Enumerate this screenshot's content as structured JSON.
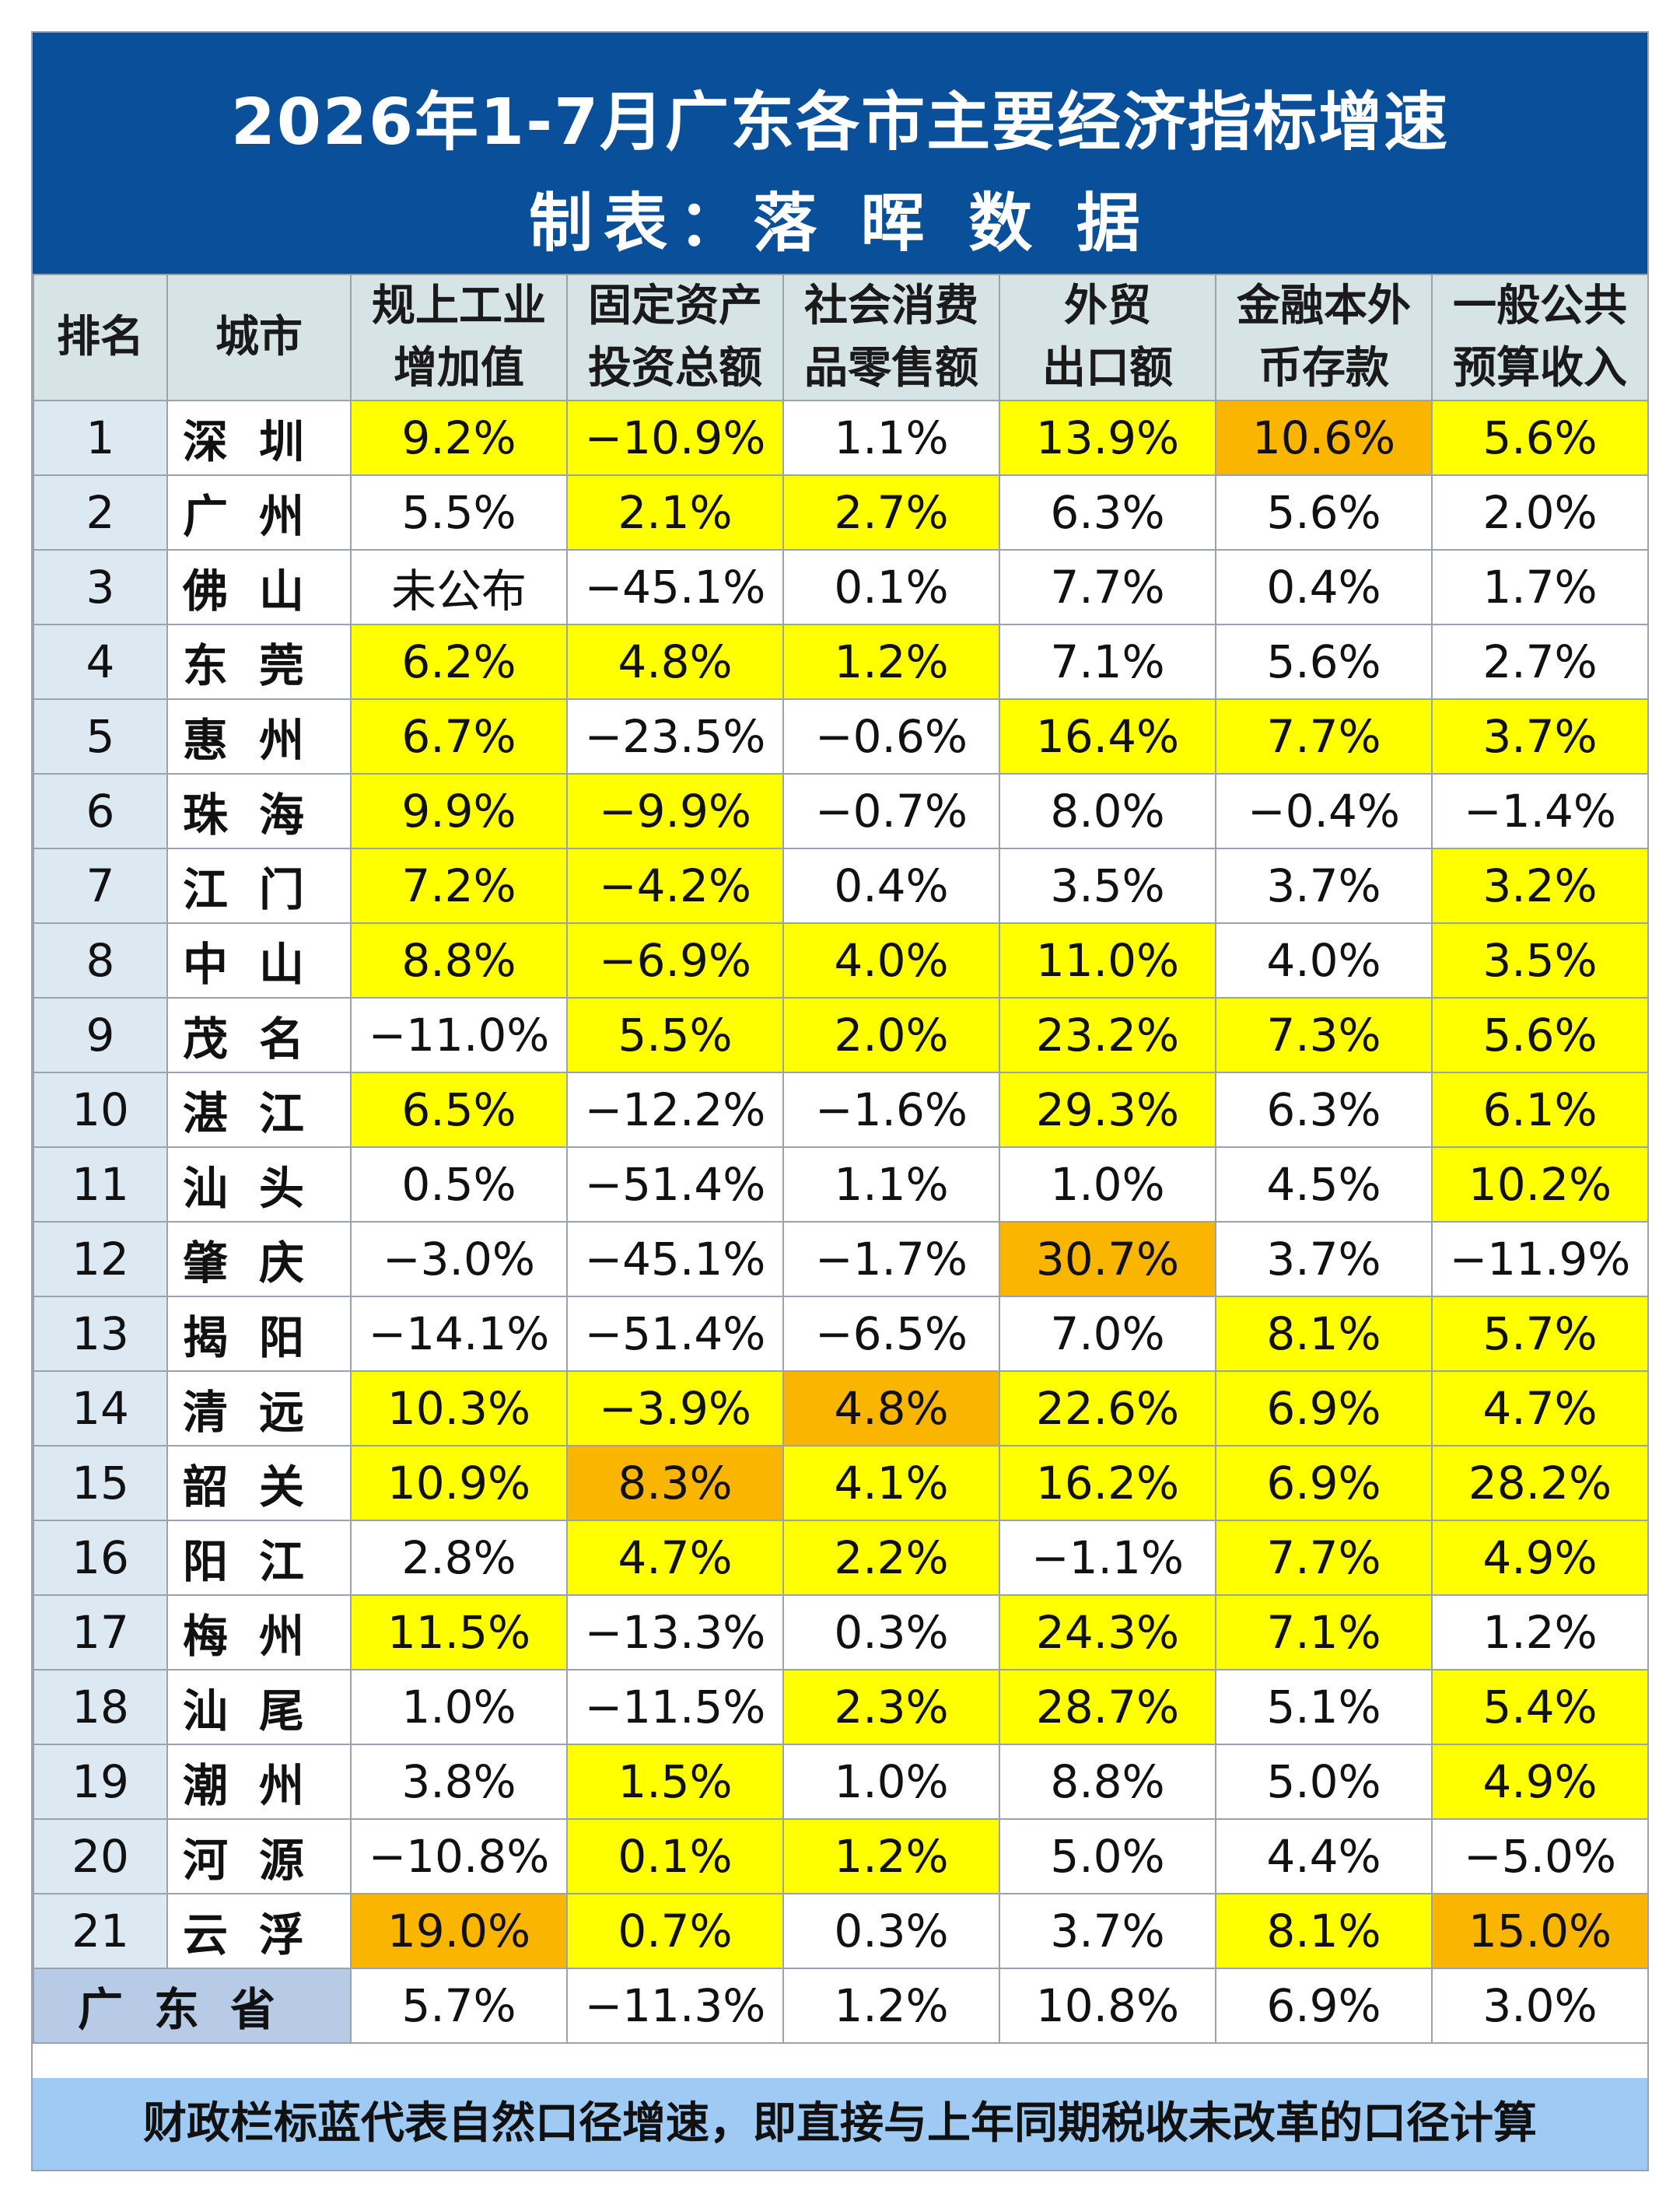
{
  "title": {
    "line1": "2026年1-7月广东各市主要经济指标增速",
    "line2": "制表：落 晖 数 据"
  },
  "table": {
    "headers": [
      [
        "排名"
      ],
      [
        "城市"
      ],
      [
        "规上工业",
        "增加值"
      ],
      [
        "固定资产",
        "投资总额"
      ],
      [
        "社会消费",
        "品零售额"
      ],
      [
        "外贸",
        "出口额"
      ],
      [
        "金融本外",
        "币存款"
      ],
      [
        "一般公共",
        "预算收入"
      ]
    ],
    "rows": [
      {
        "rank": "1",
        "city": "深圳",
        "cells": [
          {
            "v": "9.2%",
            "bg": "y"
          },
          {
            "v": "−10.9%",
            "bg": "y",
            "c": "neg"
          },
          {
            "v": "1.1%",
            "bg": "w"
          },
          {
            "v": "13.9%",
            "bg": "y"
          },
          {
            "v": "10.6%",
            "bg": "o"
          },
          {
            "v": "5.6%",
            "bg": "y"
          }
        ]
      },
      {
        "rank": "2",
        "city": "广州",
        "cells": [
          {
            "v": "5.5%",
            "bg": "w"
          },
          {
            "v": "2.1%",
            "bg": "y"
          },
          {
            "v": "2.7%",
            "bg": "y"
          },
          {
            "v": "6.3%",
            "bg": "w"
          },
          {
            "v": "5.6%",
            "bg": "w"
          },
          {
            "v": "2.0%",
            "bg": "w"
          }
        ]
      },
      {
        "rank": "3",
        "city": "佛山",
        "cells": [
          {
            "v": "未公布",
            "bg": "w",
            "c": "redsmall"
          },
          {
            "v": "−45.1%",
            "bg": "w",
            "c": "neg"
          },
          {
            "v": "0.1%",
            "bg": "w"
          },
          {
            "v": "7.7%",
            "bg": "w"
          },
          {
            "v": "0.4%",
            "bg": "w"
          },
          {
            "v": "1.7%",
            "bg": "w"
          }
        ]
      },
      {
        "rank": "4",
        "city": "东莞",
        "cells": [
          {
            "v": "6.2%",
            "bg": "y"
          },
          {
            "v": "4.8%",
            "bg": "y"
          },
          {
            "v": "1.2%",
            "bg": "y"
          },
          {
            "v": "7.1%",
            "bg": "w"
          },
          {
            "v": "5.6%",
            "bg": "w"
          },
          {
            "v": "2.7%",
            "bg": "w"
          }
        ]
      },
      {
        "rank": "5",
        "city": "惠州",
        "cells": [
          {
            "v": "6.7%",
            "bg": "y"
          },
          {
            "v": "−23.5%",
            "bg": "w",
            "c": "neg"
          },
          {
            "v": "−0.6%",
            "bg": "w",
            "c": "neg"
          },
          {
            "v": "16.4%",
            "bg": "y"
          },
          {
            "v": "7.7%",
            "bg": "y"
          },
          {
            "v": "3.7%",
            "bg": "y"
          }
        ]
      },
      {
        "rank": "6",
        "city": "珠海",
        "cells": [
          {
            "v": "9.9%",
            "bg": "y"
          },
          {
            "v": "−9.9%",
            "bg": "y",
            "c": "neg"
          },
          {
            "v": "−0.7%",
            "bg": "w",
            "c": "neg"
          },
          {
            "v": "8.0%",
            "bg": "w"
          },
          {
            "v": "−0.4%",
            "bg": "w",
            "c": "neg"
          },
          {
            "v": "−1.4%",
            "bg": "w",
            "c": "neg"
          }
        ]
      },
      {
        "rank": "7",
        "city": "江门",
        "cells": [
          {
            "v": "7.2%",
            "bg": "y"
          },
          {
            "v": "−4.2%",
            "bg": "y",
            "c": "neg"
          },
          {
            "v": "0.4%",
            "bg": "w"
          },
          {
            "v": "3.5%",
            "bg": "w"
          },
          {
            "v": "3.7%",
            "bg": "w"
          },
          {
            "v": "3.2%",
            "bg": "y"
          }
        ]
      },
      {
        "rank": "8",
        "city": "中山",
        "cells": [
          {
            "v": "8.8%",
            "bg": "y"
          },
          {
            "v": "−6.9%",
            "bg": "y",
            "c": "neg"
          },
          {
            "v": "4.0%",
            "bg": "y"
          },
          {
            "v": "11.0%",
            "bg": "y"
          },
          {
            "v": "4.0%",
            "bg": "w"
          },
          {
            "v": "3.5%",
            "bg": "y"
          }
        ]
      },
      {
        "rank": "9",
        "city": "茂名",
        "cells": [
          {
            "v": "−11.0%",
            "bg": "w",
            "c": "neg"
          },
          {
            "v": "5.5%",
            "bg": "y"
          },
          {
            "v": "2.0%",
            "bg": "y"
          },
          {
            "v": "23.2%",
            "bg": "y"
          },
          {
            "v": "7.3%",
            "bg": "y"
          },
          {
            "v": "5.6%",
            "bg": "y"
          }
        ]
      },
      {
        "rank": "10",
        "city": "湛江",
        "cells": [
          {
            "v": "6.5%",
            "bg": "y"
          },
          {
            "v": "−12.2%",
            "bg": "w",
            "c": "neg"
          },
          {
            "v": "−1.6%",
            "bg": "w",
            "c": "neg"
          },
          {
            "v": "29.3%",
            "bg": "y"
          },
          {
            "v": "6.3%",
            "bg": "w"
          },
          {
            "v": "6.1%",
            "bg": "y"
          }
        ]
      },
      {
        "rank": "11",
        "city": "汕头",
        "cells": [
          {
            "v": "0.5%",
            "bg": "w"
          },
          {
            "v": "−51.4%",
            "bg": "w",
            "c": "neg"
          },
          {
            "v": "1.1%",
            "bg": "w"
          },
          {
            "v": "1.0%",
            "bg": "w"
          },
          {
            "v": "4.5%",
            "bg": "w"
          },
          {
            "v": "10.2%",
            "bg": "y"
          }
        ]
      },
      {
        "rank": "12",
        "city": "肇庆",
        "cells": [
          {
            "v": "−3.0%",
            "bg": "w",
            "c": "neg"
          },
          {
            "v": "−45.1%",
            "bg": "w",
            "c": "neg"
          },
          {
            "v": "−1.7%",
            "bg": "w",
            "c": "neg"
          },
          {
            "v": "30.7%",
            "bg": "o"
          },
          {
            "v": "3.7%",
            "bg": "w"
          },
          {
            "v": "−11.9%",
            "bg": "w",
            "c": "neg"
          }
        ]
      },
      {
        "rank": "13",
        "city": "揭阳",
        "cells": [
          {
            "v": "−14.1%",
            "bg": "w",
            "c": "neg"
          },
          {
            "v": "−51.4%",
            "bg": "w",
            "c": "neg"
          },
          {
            "v": "−6.5%",
            "bg": "w",
            "c": "neg"
          },
          {
            "v": "7.0%",
            "bg": "w"
          },
          {
            "v": "8.1%",
            "bg": "y"
          },
          {
            "v": "5.7%",
            "bg": "y"
          }
        ]
      },
      {
        "rank": "14",
        "city": "清远",
        "cells": [
          {
            "v": "10.3%",
            "bg": "y"
          },
          {
            "v": "−3.9%",
            "bg": "y",
            "c": "neg"
          },
          {
            "v": "4.8%",
            "bg": "o"
          },
          {
            "v": "22.6%",
            "bg": "y"
          },
          {
            "v": "6.9%",
            "bg": "y"
          },
          {
            "v": "4.7%",
            "bg": "y"
          }
        ]
      },
      {
        "rank": "15",
        "city": "韶关",
        "cells": [
          {
            "v": "10.9%",
            "bg": "y"
          },
          {
            "v": "8.3%",
            "bg": "o"
          },
          {
            "v": "4.1%",
            "bg": "y"
          },
          {
            "v": "16.2%",
            "bg": "y"
          },
          {
            "v": "6.9%",
            "bg": "y"
          },
          {
            "v": "28.2%",
            "bg": "y",
            "c": "cyan"
          }
        ]
      },
      {
        "rank": "16",
        "city": "阳江",
        "cells": [
          {
            "v": "2.8%",
            "bg": "w"
          },
          {
            "v": "4.7%",
            "bg": "y"
          },
          {
            "v": "2.2%",
            "bg": "y"
          },
          {
            "v": "−1.1%",
            "bg": "w",
            "c": "neg"
          },
          {
            "v": "7.7%",
            "bg": "y"
          },
          {
            "v": "4.9%",
            "bg": "y"
          }
        ]
      },
      {
        "rank": "17",
        "city": "梅州",
        "cells": [
          {
            "v": "11.5%",
            "bg": "y"
          },
          {
            "v": "−13.3%",
            "bg": "w",
            "c": "neg"
          },
          {
            "v": "0.3%",
            "bg": "w"
          },
          {
            "v": "24.3%",
            "bg": "y"
          },
          {
            "v": "7.1%",
            "bg": "y"
          },
          {
            "v": "1.2%",
            "bg": "w"
          }
        ]
      },
      {
        "rank": "18",
        "city": "汕尾",
        "cells": [
          {
            "v": "1.0%",
            "bg": "w"
          },
          {
            "v": "−11.5%",
            "bg": "w",
            "c": "neg"
          },
          {
            "v": "2.3%",
            "bg": "y"
          },
          {
            "v": "28.7%",
            "bg": "y"
          },
          {
            "v": "5.1%",
            "bg": "w"
          },
          {
            "v": "5.4%",
            "bg": "y"
          }
        ]
      },
      {
        "rank": "19",
        "city": "潮州",
        "cells": [
          {
            "v": "3.8%",
            "bg": "w"
          },
          {
            "v": "1.5%",
            "bg": "y"
          },
          {
            "v": "1.0%",
            "bg": "w"
          },
          {
            "v": "8.8%",
            "bg": "w"
          },
          {
            "v": "5.0%",
            "bg": "w"
          },
          {
            "v": "4.9%",
            "bg": "y"
          }
        ]
      },
      {
        "rank": "20",
        "city": "河源",
        "cells": [
          {
            "v": "−10.8%",
            "bg": "w",
            "c": "neg"
          },
          {
            "v": "0.1%",
            "bg": "y"
          },
          {
            "v": "1.2%",
            "bg": "y"
          },
          {
            "v": "5.0%",
            "bg": "w"
          },
          {
            "v": "4.4%",
            "bg": "w"
          },
          {
            "v": "−5.0%",
            "bg": "w",
            "c": "neg"
          }
        ]
      },
      {
        "rank": "21",
        "city": "云浮",
        "cells": [
          {
            "v": "19.0%",
            "bg": "o"
          },
          {
            "v": "0.7%",
            "bg": "y"
          },
          {
            "v": "0.3%",
            "bg": "w"
          },
          {
            "v": "3.7%",
            "bg": "w"
          },
          {
            "v": "8.1%",
            "bg": "y"
          },
          {
            "v": "15.0%",
            "bg": "o"
          }
        ]
      }
    ],
    "total": {
      "label": "广东省",
      "cells": [
        {
          "v": "5.7%",
          "bg": "w"
        },
        {
          "v": "−11.3%",
          "bg": "w",
          "c": "neg"
        },
        {
          "v": "1.2%",
          "bg": "w"
        },
        {
          "v": "10.8%",
          "bg": "w"
        },
        {
          "v": "6.9%",
          "bg": "w"
        },
        {
          "v": "3.0%",
          "bg": "w"
        }
      ]
    }
  },
  "footer": "财政栏标蓝代表自然口径增速，即直接与上年同期税收未改革的口径计算",
  "colors": {
    "banner": "#0a4f9a",
    "header_bg": "#d7e4e6",
    "highlight_yellow": "#ffff00",
    "highlight_orange": "#f9b500",
    "negative_red": "#e30000",
    "natural_cyan": "#19a6c8",
    "footer_bg": "#9fcaf4"
  }
}
